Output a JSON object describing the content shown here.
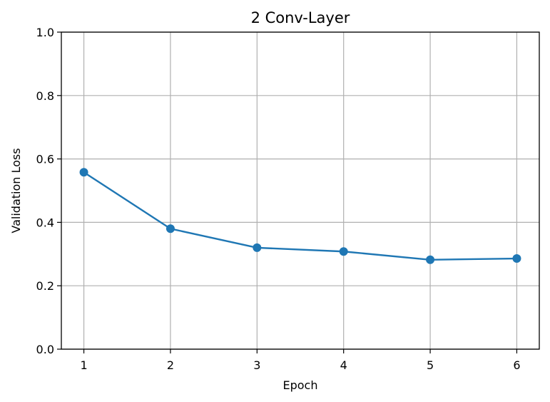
{
  "chart_data": {
    "type": "line",
    "title": "2 Conv-Layer",
    "xlabel": "Epoch",
    "ylabel": "Validation Loss",
    "x": [
      1,
      2,
      3,
      4,
      5,
      6
    ],
    "series": [
      {
        "values": [
          0.558,
          0.38,
          0.32,
          0.308,
          0.282,
          0.286
        ],
        "color": "#1f77b4",
        "marker": "circle"
      }
    ],
    "xlim": [
      0.74,
      6.26
    ],
    "ylim": [
      0,
      1.0
    ],
    "xticks": [
      "1",
      "2",
      "3",
      "4",
      "5",
      "6"
    ],
    "yticks": [
      "0.0",
      "0.2",
      "0.4",
      "0.6",
      "0.8",
      "1.0"
    ],
    "grid": true,
    "legend": "none"
  }
}
